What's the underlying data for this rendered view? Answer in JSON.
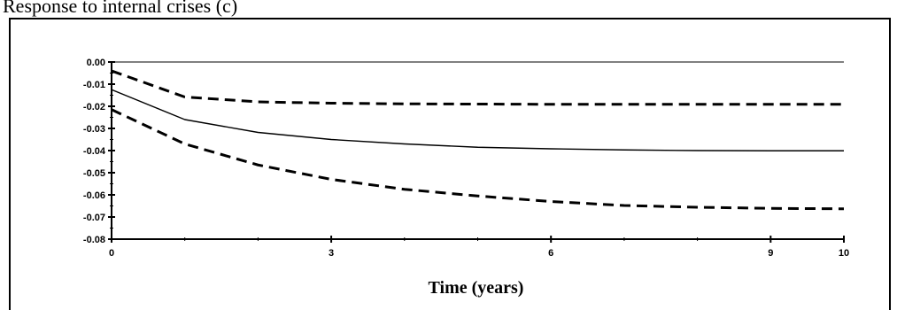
{
  "caption": "Response to internal crises (c)",
  "chart_data": {
    "type": "line",
    "title": "",
    "xlabel": "Time (years)",
    "ylabel": "",
    "xlim": [
      0,
      10
    ],
    "ylim": [
      -0.08,
      0.0
    ],
    "x_ticks": [
      0,
      3,
      6,
      9,
      10
    ],
    "x_tick_labels": [
      "0",
      "3",
      "6",
      "9",
      "10"
    ],
    "y_ticks": [
      0.0,
      -0.01,
      -0.02,
      -0.03,
      -0.04,
      -0.05,
      -0.06,
      -0.07,
      -0.08
    ],
    "y_tick_labels": [
      "0.00",
      "-0.01",
      "-0.02",
      "-0.03",
      "-0.04",
      "-0.05",
      "-0.06",
      "-0.07",
      "-0.08"
    ],
    "grid": false,
    "zero_line": true,
    "x": [
      0,
      1,
      2,
      3,
      4,
      5,
      6,
      7,
      8,
      9,
      10
    ],
    "series": [
      {
        "style": "solid",
        "values": [
          -0.0125,
          -0.026,
          -0.0318,
          -0.035,
          -0.037,
          -0.0385,
          -0.0392,
          -0.0397,
          -0.04,
          -0.0401,
          -0.0401
        ]
      },
      {
        "style": "dashed",
        "values": [
          -0.004,
          -0.0158,
          -0.018,
          -0.0186,
          -0.0189,
          -0.019,
          -0.0191,
          -0.0191,
          -0.0191,
          -0.0191,
          -0.0191
        ]
      },
      {
        "style": "dashed",
        "values": [
          -0.0215,
          -0.037,
          -0.0465,
          -0.053,
          -0.0575,
          -0.0605,
          -0.063,
          -0.0648,
          -0.0656,
          -0.0661,
          -0.0663
        ]
      }
    ]
  }
}
